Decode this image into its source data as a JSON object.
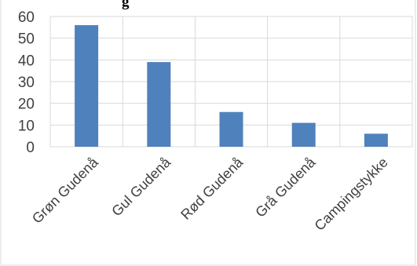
{
  "chart_data": {
    "type": "bar",
    "title_fragment": "g",
    "categories": [
      "Grøn Gudenå",
      "Gul Gudenå",
      "Rød Gudenå",
      "Grå Gudenå",
      "Campingstykke"
    ],
    "values": [
      56,
      39,
      16,
      11,
      6
    ],
    "ylim": [
      0,
      60
    ],
    "yticks": [
      "0",
      "10",
      "20",
      "30",
      "40",
      "50",
      "60"
    ],
    "grid": true,
    "bar_color": "#4f81bd",
    "legend": "none"
  }
}
